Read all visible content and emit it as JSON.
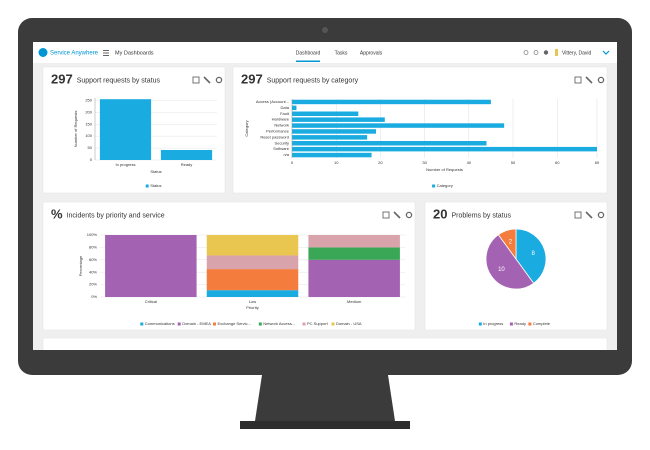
{
  "header": {
    "brand": "Service Anywhere",
    "section": "My Dashboards",
    "tabs": [
      "Dashboard",
      "Tasks",
      "Approvals"
    ],
    "user": "Vittery, David"
  },
  "chart_data": [
    {
      "type": "bar",
      "count": "297",
      "title": "Support requests by status",
      "categories": [
        "In progress",
        "Ready"
      ],
      "values": [
        255,
        42
      ],
      "color": "#1aabe0",
      "ylim": [
        0,
        260
      ],
      "yticks": [
        0,
        50,
        100,
        150,
        200,
        250
      ],
      "grid": true,
      "x_label": "Status",
      "y_label": "Number of Requests",
      "legend": "Status"
    },
    {
      "type": "hbar",
      "count": "297",
      "title": "Support requests by category",
      "categories": [
        "Access (Account...",
        "Data",
        "Fault",
        "Hardware",
        "Network",
        "Performance",
        "Reset password",
        "Security",
        "Software",
        "n/a"
      ],
      "values": [
        45,
        1,
        15,
        21,
        48,
        19,
        17,
        44,
        69,
        18
      ],
      "color": "#1aabe0",
      "xlim": [
        0,
        69
      ],
      "xticks": [
        0,
        10,
        20,
        30,
        40,
        50,
        60,
        69
      ],
      "grid": true,
      "x_label": "Number of Requests",
      "y_label": "Category",
      "legend": "Category"
    },
    {
      "type": "stacked-bar",
      "count": "%",
      "title": "Incidents by priority and service",
      "categories": [
        "Critical",
        "Low",
        "Medium"
      ],
      "series": [
        {
          "name": "Communications",
          "color": "#1aabe0",
          "values": [
            0,
            11,
            0
          ]
        },
        {
          "name": "Domain - EMEA",
          "color": "#a462b2",
          "values": [
            100,
            0,
            60
          ]
        },
        {
          "name": "Exchange Servic...",
          "color": "#f47c3c",
          "values": [
            0,
            34,
            0
          ]
        },
        {
          "name": "Network Access...",
          "color": "#3aa757",
          "values": [
            0,
            0,
            20
          ]
        },
        {
          "name": "PC Support",
          "color": "#d9a3ab",
          "values": [
            0,
            22,
            20
          ]
        },
        {
          "name": "Domain - USA",
          "color": "#e8c650",
          "values": [
            0,
            33,
            0
          ]
        }
      ],
      "ylim": [
        0,
        100
      ],
      "yticks": [
        {
          "value": 0,
          "label": "0%"
        },
        {
          "value": 20,
          "label": "20%"
        },
        {
          "value": 40,
          "label": "40%"
        },
        {
          "value": 60,
          "label": "60%"
        },
        {
          "value": 80,
          "label": "80%"
        },
        {
          "value": 100,
          "label": "100%"
        }
      ],
      "grid": true,
      "x_label": "Priority",
      "y_label": "Percentage"
    },
    {
      "type": "pie",
      "count": "20",
      "title": "Problems by status",
      "categories": [
        "In progress",
        "Ready",
        "Complete"
      ],
      "values": [
        8,
        10,
        2
      ],
      "colors": [
        "#1aabe0",
        "#a462b2",
        "#f47c3c"
      ]
    }
  ]
}
